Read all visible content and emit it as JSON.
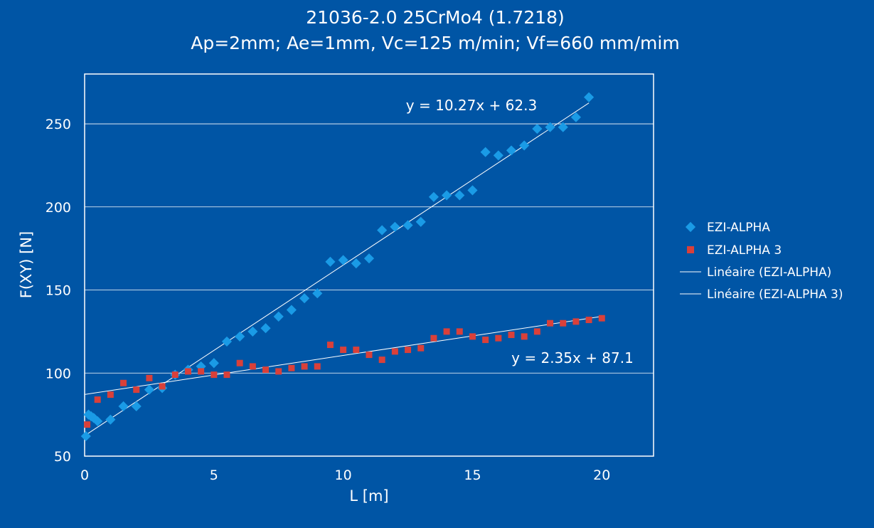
{
  "chart_data": {
    "type": "scatter",
    "title": "21036-2.0 25CrMo4 (1.7218)",
    "subtitle": "Ap=2mm; Ae=1mm, Vc=125 m/min; Vf=660 mm/mim",
    "xlabel": "L [m]",
    "ylabel": "F(XY) [N]",
    "xlim": [
      0,
      22
    ],
    "ylim": [
      50,
      280
    ],
    "xticks": [
      0,
      5,
      10,
      15,
      20
    ],
    "yticks": [
      50,
      100,
      150,
      200,
      250
    ],
    "grid": "horizontal",
    "legend_position": "right",
    "series": [
      {
        "name": "EZI-ALPHA",
        "marker": "diamond",
        "color": "#1a9be6",
        "x": [
          0.05,
          0.15,
          0.25,
          0.35,
          0.5,
          1,
          1.5,
          2,
          2.5,
          3,
          3.5,
          4,
          4.5,
          5,
          5.5,
          6,
          6.5,
          7,
          7.5,
          8,
          8.5,
          9,
          9.5,
          10,
          10.5,
          11,
          11.5,
          12,
          12.5,
          13,
          13.5,
          14,
          14.5,
          15,
          15.5,
          16,
          16.5,
          17,
          17.5,
          18,
          18.5,
          19,
          19.5
        ],
        "y": [
          62,
          75,
          74,
          73,
          71,
          72,
          80,
          80,
          90,
          91,
          99,
          102,
          104,
          106,
          119,
          122,
          125,
          127,
          134,
          138,
          145,
          148,
          167,
          168,
          166,
          169,
          186,
          188,
          189,
          191,
          206,
          207,
          207,
          210,
          233,
          231,
          234,
          237,
          247,
          248,
          248,
          254,
          266
        ]
      },
      {
        "name": "EZI-ALPHA 3",
        "marker": "square",
        "color": "#d9403a",
        "x": [
          0.1,
          0.5,
          1,
          1.5,
          2,
          2.5,
          3,
          3.5,
          4,
          4.5,
          5,
          5.5,
          6,
          6.5,
          7,
          7.5,
          8,
          8.5,
          9,
          9.5,
          10,
          10.5,
          11,
          11.5,
          12,
          12.5,
          13,
          13.5,
          14,
          14.5,
          15,
          15.5,
          16,
          16.5,
          17,
          17.5,
          18,
          18.5,
          19,
          19.5,
          20
        ],
        "y": [
          69,
          84,
          87,
          94,
          90,
          97,
          92,
          99,
          101,
          101,
          99,
          99,
          106,
          104,
          102,
          101,
          103,
          104,
          104,
          117,
          114,
          114,
          111,
          108,
          113,
          114,
          115,
          121,
          125,
          125,
          122,
          120,
          121,
          123,
          122,
          125,
          130,
          130,
          131,
          132,
          133
        ]
      }
    ],
    "trendlines": [
      {
        "name": "Linéaire (EZI-ALPHA)",
        "slope": 10.27,
        "intercept": 62.3,
        "x_range": [
          0,
          19.5
        ],
        "label": "y = 10.27x + 62.3",
        "color": "#ffffff"
      },
      {
        "name": "Linéaire (EZI-ALPHA 3)",
        "slope": 2.35,
        "intercept": 87.1,
        "x_range": [
          0,
          20
        ],
        "label": "y = 2.35x + 87.1",
        "color": "#ffffff"
      }
    ]
  }
}
